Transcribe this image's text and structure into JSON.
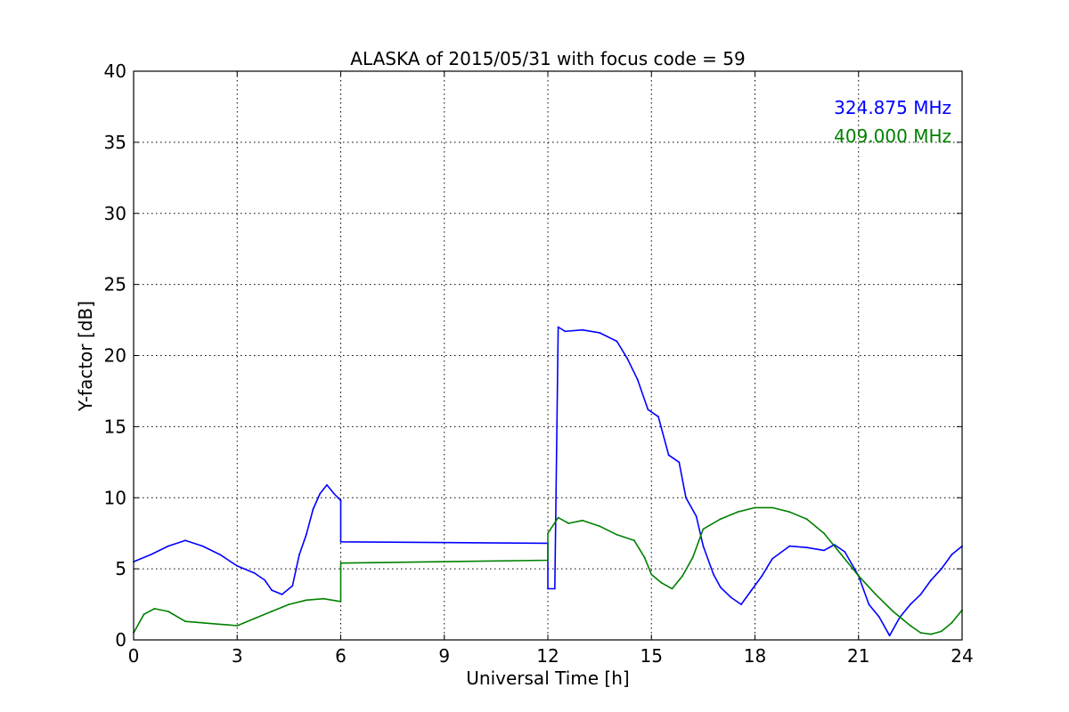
{
  "chart_data": {
    "type": "line",
    "title": "ALASKA of 2015/05/31 with focus code = 59",
    "xlabel": "Universal Time [h]",
    "ylabel": "Y-factor [dB]",
    "xlim": [
      0,
      24
    ],
    "ylim": [
      0,
      40
    ],
    "xticks": [
      0,
      3,
      6,
      9,
      12,
      15,
      18,
      21,
      24
    ],
    "yticks": [
      0,
      5,
      10,
      15,
      20,
      25,
      30,
      35,
      40
    ],
    "grid": true,
    "legend_placement": "top-right",
    "series": [
      {
        "name": "324.875 MHz",
        "color": "#0000ff",
        "x": [
          0,
          0.5,
          1.0,
          1.5,
          2.0,
          2.5,
          3.0,
          3.5,
          3.8,
          4.0,
          4.3,
          4.6,
          4.8,
          5.0,
          5.2,
          5.4,
          5.6,
          5.8,
          6.0,
          6.0,
          12.0,
          12.0,
          12.2,
          12.3,
          12.5,
          13.0,
          13.5,
          14.0,
          14.3,
          14.6,
          14.9,
          15.2,
          15.5,
          15.8,
          16.0,
          16.3,
          16.5,
          16.8,
          17.0,
          17.3,
          17.6,
          17.9,
          18.2,
          18.5,
          19.0,
          19.5,
          20.0,
          20.3,
          20.6,
          21.0,
          21.3,
          21.6,
          21.9,
          22.2,
          22.5,
          22.8,
          23.1,
          23.4,
          23.7,
          24.0
        ],
        "values": [
          5.5,
          6.0,
          6.6,
          7.0,
          6.6,
          6.0,
          5.2,
          4.7,
          4.2,
          3.5,
          3.2,
          3.8,
          6.0,
          7.4,
          9.2,
          10.3,
          10.9,
          10.3,
          9.8,
          6.9,
          6.8,
          3.6,
          3.6,
          22.0,
          21.7,
          21.8,
          21.6,
          21.0,
          19.8,
          18.3,
          16.2,
          15.7,
          13.0,
          12.5,
          10.0,
          8.7,
          6.6,
          4.6,
          3.7,
          3.0,
          2.5,
          3.5,
          4.5,
          5.7,
          6.6,
          6.5,
          6.3,
          6.7,
          6.2,
          4.5,
          2.5,
          1.6,
          0.3,
          1.6,
          2.5,
          3.2,
          4.2,
          5.0,
          6.0,
          6.6
        ]
      },
      {
        "name": "409.000 MHz",
        "color": "#008000",
        "x": [
          0,
          0.3,
          0.6,
          1.0,
          1.5,
          2.0,
          2.5,
          3.0,
          3.5,
          4.0,
          4.5,
          5.0,
          5.5,
          6.0,
          6.0,
          12.0,
          12.0,
          12.3,
          12.6,
          13.0,
          13.5,
          14.0,
          14.5,
          14.8,
          15.0,
          15.3,
          15.6,
          15.9,
          16.2,
          16.5,
          17.0,
          17.5,
          18.0,
          18.5,
          19.0,
          19.5,
          20.0,
          20.5,
          21.0,
          21.5,
          22.0,
          22.5,
          22.8,
          23.1,
          23.4,
          23.7,
          24.0
        ],
        "values": [
          0.5,
          1.8,
          2.2,
          2.0,
          1.3,
          1.2,
          1.1,
          1.0,
          1.5,
          2.0,
          2.5,
          2.8,
          2.9,
          2.7,
          5.4,
          5.6,
          7.5,
          8.6,
          8.2,
          8.4,
          8.0,
          7.4,
          7.0,
          5.8,
          4.6,
          4.0,
          3.6,
          4.5,
          5.8,
          7.8,
          8.5,
          9.0,
          9.3,
          9.3,
          9.0,
          8.5,
          7.5,
          6.0,
          4.5,
          3.2,
          2.0,
          1.0,
          0.5,
          0.4,
          0.6,
          1.2,
          2.1
        ]
      }
    ]
  }
}
